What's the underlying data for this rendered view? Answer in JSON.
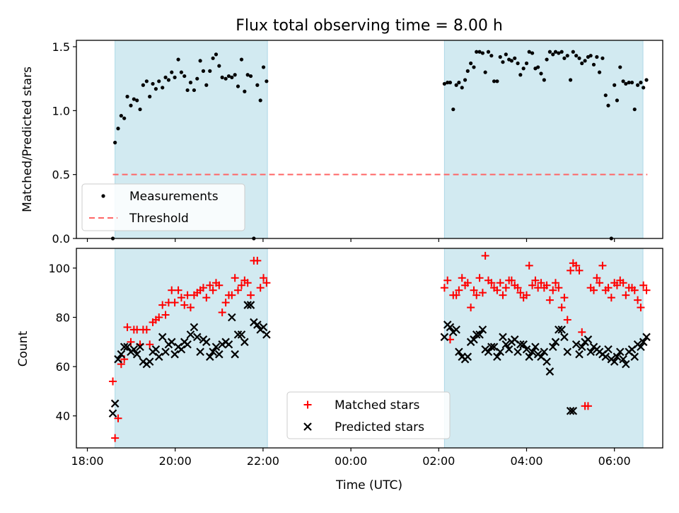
{
  "figure": {
    "title": "Flux total observing time = 8.00 h",
    "xlabel": "Time (UTC)",
    "xlim_hours": [
      -0.25,
      13.1
    ],
    "xticks": [
      {
        "label": "18:00",
        "hour": 0
      },
      {
        "label": "20:00",
        "hour": 2
      },
      {
        "label": "22:00",
        "hour": 4
      },
      {
        "label": "00:00",
        "hour": 6
      },
      {
        "label": "02:00",
        "hour": 8
      },
      {
        "label": "04:00",
        "hour": 10
      },
      {
        "label": "06:00",
        "hour": 12
      }
    ],
    "x_origin": "18:00 UTC",
    "observing_windows": [
      {
        "start": 0.63,
        "end": 4.1
      },
      {
        "start": 8.13,
        "end": 12.65
      }
    ],
    "colors": {
      "window": "#add8e6",
      "threshold": "#ff6666",
      "measurements": "#000000",
      "matched": "#ff0000",
      "predicted": "#000000"
    }
  },
  "chart_data": [
    {
      "type": "scatter",
      "ylabel": "Matched/Predicted stars",
      "ylim": [
        0,
        1.55
      ],
      "yticks": [
        "0.0",
        "0.5",
        "1.0",
        "1.5"
      ],
      "legend_position": "lower-left",
      "threshold": {
        "name": "Threshold",
        "y": 0.5,
        "x_range": [
          0.58,
          12.75
        ]
      },
      "series": [
        {
          "name": "Measurements",
          "marker": "dot",
          "x": [
            0.58,
            0.63,
            0.7,
            0.77,
            0.84,
            0.91,
            0.99,
            1.06,
            1.13,
            1.2,
            1.27,
            1.35,
            1.42,
            1.49,
            1.56,
            1.63,
            1.71,
            1.78,
            1.85,
            1.92,
            1.99,
            2.07,
            2.14,
            2.21,
            2.28,
            2.35,
            2.43,
            2.5,
            2.57,
            2.64,
            2.71,
            2.79,
            2.86,
            2.93,
            3.0,
            3.07,
            3.15,
            3.22,
            3.29,
            3.36,
            3.43,
            3.51,
            3.58,
            3.65,
            3.72,
            3.79,
            3.87,
            3.94,
            4.01,
            4.08,
            8.13,
            8.2,
            8.26,
            8.33,
            8.4,
            8.46,
            8.53,
            8.6,
            8.66,
            8.73,
            8.8,
            8.86,
            8.93,
            9.0,
            9.06,
            9.13,
            9.2,
            9.26,
            9.33,
            9.4,
            9.46,
            9.53,
            9.6,
            9.66,
            9.73,
            9.8,
            9.86,
            9.93,
            10.0,
            10.06,
            10.13,
            10.2,
            10.26,
            10.33,
            10.4,
            10.46,
            10.53,
            10.6,
            10.66,
            10.73,
            10.8,
            10.86,
            10.93,
            11.0,
            11.06,
            11.13,
            11.2,
            11.26,
            11.33,
            11.4,
            11.46,
            11.53,
            11.6,
            11.66,
            11.73,
            11.8,
            11.86,
            11.93,
            12.0,
            12.06,
            12.13,
            12.2,
            12.26,
            12.33,
            12.4,
            12.46,
            12.53,
            12.6,
            12.66,
            12.73
          ],
          "y": [
            0.0,
            0.75,
            0.86,
            0.96,
            0.94,
            1.11,
            1.04,
            1.09,
            1.08,
            1.01,
            1.2,
            1.23,
            1.11,
            1.21,
            1.17,
            1.23,
            1.18,
            1.26,
            1.24,
            1.3,
            1.26,
            1.4,
            1.3,
            1.27,
            1.16,
            1.22,
            1.16,
            1.25,
            1.39,
            1.31,
            1.2,
            1.31,
            1.41,
            1.44,
            1.35,
            1.26,
            1.25,
            1.27,
            1.26,
            1.28,
            1.19,
            1.4,
            1.15,
            1.28,
            1.27,
            0.0,
            1.2,
            1.08,
            1.34,
            1.23,
            1.21,
            1.22,
            1.22,
            1.01,
            1.2,
            1.22,
            1.18,
            1.24,
            1.31,
            1.37,
            1.34,
            1.46,
            1.46,
            1.45,
            1.3,
            1.46,
            1.43,
            1.23,
            1.23,
            1.42,
            1.38,
            1.44,
            1.4,
            1.39,
            1.41,
            1.37,
            1.28,
            1.33,
            1.37,
            1.46,
            1.45,
            1.33,
            1.34,
            1.29,
            1.24,
            1.4,
            1.46,
            1.44,
            1.46,
            1.45,
            1.46,
            1.41,
            1.43,
            1.24,
            1.46,
            1.43,
            1.41,
            1.37,
            1.39,
            1.42,
            1.43,
            1.36,
            1.42,
            1.3,
            1.41,
            1.12,
            1.04,
            0.0,
            1.2,
            1.08,
            1.34,
            1.23,
            1.21,
            1.22,
            1.22,
            1.01,
            1.2,
            1.22,
            1.18,
            1.24
          ]
        }
      ]
    },
    {
      "type": "scatter",
      "ylabel": "Count",
      "ylim": [
        27,
        108
      ],
      "yticks": [
        "40",
        "60",
        "80",
        "100"
      ],
      "legend_position": "lower-center",
      "series": [
        {
          "name": "Matched stars",
          "marker": "plus",
          "x": [
            0.58,
            0.63,
            0.7,
            0.77,
            0.84,
            0.91,
            0.99,
            1.06,
            1.13,
            1.2,
            1.27,
            1.35,
            1.42,
            1.49,
            1.56,
            1.63,
            1.71,
            1.78,
            1.85,
            1.92,
            1.99,
            2.07,
            2.14,
            2.21,
            2.28,
            2.35,
            2.43,
            2.5,
            2.57,
            2.64,
            2.71,
            2.79,
            2.86,
            2.93,
            3.0,
            3.07,
            3.15,
            3.22,
            3.29,
            3.36,
            3.43,
            3.51,
            3.58,
            3.65,
            3.72,
            3.79,
            3.87,
            3.94,
            4.01,
            4.08,
            8.13,
            8.2,
            8.26,
            8.33,
            8.4,
            8.46,
            8.53,
            8.6,
            8.66,
            8.73,
            8.8,
            8.86,
            8.93,
            9.0,
            9.06,
            9.13,
            9.2,
            9.26,
            9.33,
            9.4,
            9.46,
            9.53,
            9.6,
            9.66,
            9.73,
            9.8,
            9.86,
            9.93,
            10.0,
            10.06,
            10.13,
            10.2,
            10.26,
            10.33,
            10.4,
            10.46,
            10.53,
            10.6,
            10.66,
            10.73,
            10.8,
            10.86,
            10.93,
            11.0,
            11.06,
            11.13,
            11.2,
            11.26,
            11.33,
            11.4,
            11.46,
            11.53,
            11.6,
            11.66,
            11.73,
            11.8,
            11.86,
            11.93,
            12.0,
            12.06,
            12.13,
            12.2,
            12.26,
            12.33,
            12.4,
            12.46,
            12.53,
            12.6,
            12.66,
            12.73
          ],
          "y": [
            54,
            31,
            39,
            61,
            63,
            76,
            70,
            75,
            75,
            69,
            75,
            75,
            69,
            78,
            79,
            80,
            85,
            81,
            86,
            91,
            86,
            91,
            88,
            85,
            89,
            84,
            89,
            90,
            91,
            92,
            88,
            93,
            91,
            94,
            93,
            82,
            86,
            89,
            89,
            96,
            91,
            93,
            95,
            94,
            89,
            103,
            103,
            92,
            96,
            94,
            92,
            95,
            71,
            89,
            89,
            91,
            96,
            93,
            94,
            84,
            91,
            89,
            96,
            90,
            105,
            95,
            94,
            92,
            91,
            94,
            89,
            92,
            95,
            95,
            93,
            92,
            90,
            88,
            89,
            101,
            93,
            95,
            92,
            94,
            92,
            93,
            87,
            91,
            94,
            92,
            84,
            88,
            79,
            99,
            102,
            101,
            99,
            74,
            44,
            44,
            92,
            91,
            96,
            94,
            101,
            91,
            92,
            88,
            94,
            93,
            95,
            94,
            89,
            92,
            92,
            91,
            87,
            84,
            93,
            91
          ]
        },
        {
          "name": "Predicted stars",
          "marker": "x",
          "x": [
            0.58,
            0.63,
            0.7,
            0.77,
            0.84,
            0.91,
            0.99,
            1.06,
            1.13,
            1.2,
            1.27,
            1.35,
            1.42,
            1.49,
            1.56,
            1.63,
            1.71,
            1.78,
            1.85,
            1.92,
            1.99,
            2.07,
            2.14,
            2.21,
            2.28,
            2.35,
            2.43,
            2.5,
            2.57,
            2.64,
            2.71,
            2.79,
            2.86,
            2.93,
            3.0,
            3.07,
            3.15,
            3.22,
            3.29,
            3.36,
            3.43,
            3.51,
            3.58,
            3.65,
            3.72,
            3.79,
            3.87,
            3.94,
            4.01,
            4.08,
            8.13,
            8.2,
            8.26,
            8.33,
            8.4,
            8.46,
            8.53,
            8.6,
            8.66,
            8.73,
            8.8,
            8.86,
            8.93,
            9.0,
            9.06,
            9.13,
            9.2,
            9.26,
            9.33,
            9.4,
            9.46,
            9.53,
            9.6,
            9.66,
            9.73,
            9.8,
            9.86,
            9.93,
            10.0,
            10.06,
            10.13,
            10.2,
            10.26,
            10.33,
            10.4,
            10.46,
            10.53,
            10.6,
            10.66,
            10.73,
            10.8,
            10.86,
            10.93,
            11.0,
            11.06,
            11.13,
            11.2,
            11.26,
            11.33,
            11.4,
            11.46,
            11.53,
            11.6,
            11.66,
            11.73,
            11.8,
            11.86,
            11.93,
            12.0,
            12.06,
            12.13,
            12.2,
            12.26,
            12.33,
            12.4,
            12.46,
            12.53,
            12.6,
            12.66,
            12.73
          ],
          "y": [
            41,
            45,
            63,
            65,
            68,
            68,
            66,
            67,
            65,
            68,
            62,
            61,
            62,
            66,
            67,
            64,
            72,
            66,
            69,
            70,
            65,
            68,
            67,
            70,
            69,
            73,
            76,
            72,
            66,
            71,
            70,
            64,
            66,
            68,
            65,
            69,
            70,
            69,
            80,
            65,
            73,
            73,
            70,
            85,
            85,
            78,
            77,
            75,
            76,
            73,
            72,
            77,
            76,
            74,
            75,
            66,
            64,
            63,
            64,
            70,
            71,
            73,
            73,
            75,
            67,
            66,
            68,
            68,
            64,
            66,
            72,
            69,
            67,
            70,
            71,
            66,
            69,
            69,
            67,
            64,
            66,
            68,
            65,
            64,
            66,
            62,
            58,
            68,
            70,
            75,
            75,
            72,
            66,
            42,
            42,
            69,
            65,
            68,
            70,
            71,
            66,
            68,
            67,
            66,
            65,
            64,
            67,
            63,
            62,
            64,
            66,
            63,
            61,
            66,
            67,
            64,
            69,
            68,
            70,
            72
          ]
        }
      ]
    }
  ]
}
